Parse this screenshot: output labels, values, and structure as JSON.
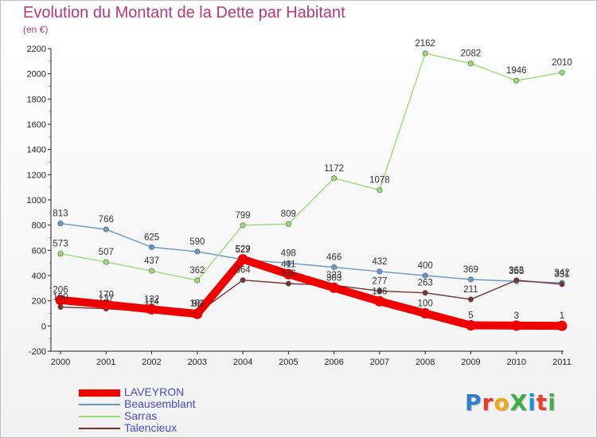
{
  "page": {
    "title": "Evolution du Montant de la Dette par Habitant",
    "subtitle": "(en €)",
    "brand": {
      "text": "ProXiti",
      "letter_colors": [
        "#2f7fd1",
        "#e53c2a",
        "#f0a91b",
        "#3fae49",
        "#1f8fd8",
        "#e5432f",
        "#3fae49"
      ]
    }
  },
  "chart_data": {
    "type": "line",
    "title": "Evolution du Montant de la Dette par Habitant",
    "subtitle": "(en €)",
    "xlabel": "",
    "ylabel": "",
    "ylim": [
      -200,
      2200
    ],
    "y_ticks": [
      -200,
      0,
      200,
      400,
      600,
      800,
      1000,
      1200,
      1400,
      1600,
      1800,
      2000,
      2200
    ],
    "categories": [
      "2000",
      "2001",
      "2002",
      "2003",
      "2004",
      "2005",
      "2006",
      "2007",
      "2008",
      "2009",
      "2010",
      "2011"
    ],
    "grid": false,
    "legend_position": "bottom-left",
    "series": [
      {
        "name": "LAVEYRON",
        "color": "#ee0000",
        "emphasis": true,
        "values": [
          206,
          170,
          132,
          96,
          529,
          411,
          303,
          196,
          100,
          5,
          3,
          1
        ]
      },
      {
        "name": "Beausemblant",
        "color": "#6699cc",
        "emphasis": false,
        "values": [
          813,
          766,
          625,
          590,
          527,
          498,
          466,
          432,
          400,
          369,
          355,
          342
        ]
      },
      {
        "name": "Sarras",
        "color": "#99dd77",
        "emphasis": false,
        "values": [
          573,
          507,
          437,
          362,
          799,
          809,
          1172,
          1078,
          2162,
          2082,
          1946,
          2010
        ]
      },
      {
        "name": "Talencieux",
        "color": "#773333",
        "emphasis": false,
        "values": [
          150,
          137,
          114,
          101,
          364,
          336,
          323,
          277,
          263,
          211,
          363,
          331
        ]
      }
    ]
  }
}
